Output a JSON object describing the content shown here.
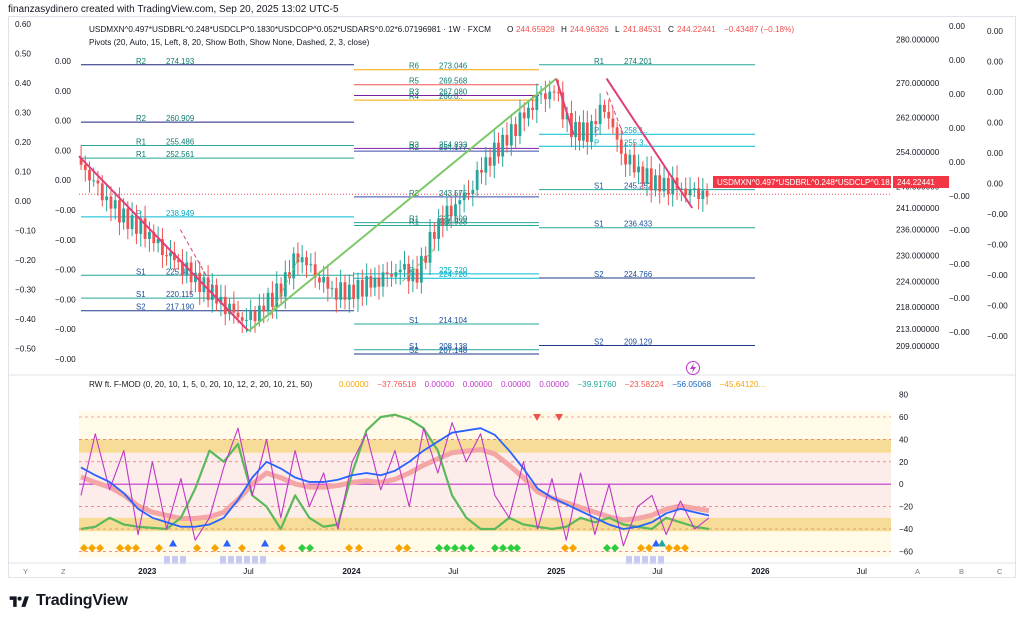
{
  "caption": "finanzasydinero created with TradingView.com, Sep 20, 2025 13:02 UTC-5",
  "brand": "TradingView",
  "colors": {
    "up": "#26a69a",
    "down": "#ef5350",
    "trend_up": "#7ec86a",
    "trend_down": "#e0407a",
    "price_tag": "#f23645"
  },
  "header": {
    "symbol": "USDMXN^0.497*USDBRL^0.248*USDCLP^0.1830*USDCOP^0.052*USDARS^0.02*6.07196981 · 1W · FXCM",
    "o_label": "O",
    "o": "244.65928",
    "h_label": "H",
    "h": "244.96326",
    "l_label": "L",
    "l": "241.84531",
    "c_label": "C",
    "c": "244.22441",
    "chg": "−0.43487 (−0.18%)",
    "pivots": "Pivots (20, Auto, 15, Left, 8, 20, Show Both, Show None, Dashed, 2, 3, close)",
    "osc": "RW ft. F-MOD (0, 20, 10, 1, 5, 0, 20, 10, 12, 2, 20, 10, 21, 50)",
    "osc_values": [
      "0.00000",
      "−37.76518",
      "0.00000",
      "0.00000",
      "0.00000",
      "0.00000",
      "−39.91760",
      "−23.58224",
      "−56.05068",
      "−45.64120..."
    ]
  },
  "price_tag": {
    "label": "USDMXN^0.497*USDBRL^0.248*USDCLP^0.18...",
    "value": "244.22441"
  },
  "chart_data": {
    "type": "line",
    "x_ticks": [
      "2023",
      "Jul",
      "2024",
      "Jul",
      "2025",
      "Jul",
      "2026",
      "Jul"
    ],
    "price_axis": [
      "280.000000",
      "270.000000",
      "262.000000",
      "254.000000",
      "246.000000",
      "241.000000",
      "236.000000",
      "230.000000",
      "224.000000",
      "218.000000",
      "213.000000",
      "209.000000"
    ],
    "left_axis_outer": [
      "0.60",
      "0.50",
      "0.40",
      "0.30",
      "0.20",
      "0.10",
      "0.00",
      "−0.10",
      "−0.20",
      "−0.30",
      "−0.40",
      "−0.50"
    ],
    "left_axis_inner": [
      "0.00",
      "0.00",
      "0.00",
      "0.00",
      "0.00",
      "−0.00",
      "−0.00",
      "−0.00",
      "−0.00",
      "−0.00",
      "−0.00"
    ],
    "right_axis_a": [
      "0.00",
      "0.00",
      "0.00",
      "0.00",
      "0.00",
      "−0.00",
      "−0.00",
      "−0.00",
      "−0.00",
      "−0.00"
    ],
    "right_axis_b": [
      "0.00",
      "0.00",
      "0.00",
      "0.00",
      "0.00",
      "0.00",
      "−0.00",
      "−0.00",
      "−0.00",
      "−0.00",
      "−0.00"
    ],
    "osc_axis": [
      "80",
      "60",
      "40",
      "20",
      "0",
      "−20",
      "−40",
      "−60"
    ],
    "close_series": [
      {
        "t": "2022-09",
        "v": 252.5
      },
      {
        "t": "2022-10",
        "v": 246.5
      },
      {
        "t": "2022-11",
        "v": 241.5
      },
      {
        "t": "2022-12",
        "v": 238.0
      },
      {
        "t": "2023-01",
        "v": 236.0
      },
      {
        "t": "2023-02",
        "v": 231.5
      },
      {
        "t": "2023-03",
        "v": 228.5
      },
      {
        "t": "2023-04",
        "v": 224.5
      },
      {
        "t": "2023-05",
        "v": 221.0
      },
      {
        "t": "2023-06",
        "v": 217.0
      },
      {
        "t": "2023-07",
        "v": 214.5
      },
      {
        "t": "2023-08",
        "v": 218.0
      },
      {
        "t": "2023-09",
        "v": 222.5
      },
      {
        "t": "2023-10",
        "v": 230.5
      },
      {
        "t": "2023-11",
        "v": 226.0
      },
      {
        "t": "2023-12",
        "v": 222.0
      },
      {
        "t": "2024-01",
        "v": 221.5
      },
      {
        "t": "2024-02",
        "v": 223.0
      },
      {
        "t": "2024-03",
        "v": 224.5
      },
      {
        "t": "2024-04",
        "v": 226.5
      },
      {
        "t": "2024-05",
        "v": 225.0
      },
      {
        "t": "2024-06",
        "v": 236.0
      },
      {
        "t": "2024-07",
        "v": 241.0
      },
      {
        "t": "2024-08",
        "v": 245.0
      },
      {
        "t": "2024-09",
        "v": 252.0
      },
      {
        "t": "2024-10",
        "v": 256.0
      },
      {
        "t": "2024-11",
        "v": 261.0
      },
      {
        "t": "2024-12",
        "v": 266.0
      },
      {
        "t": "2025-01",
        "v": 268.0
      },
      {
        "t": "2025-02",
        "v": 259.0
      },
      {
        "t": "2025-03",
        "v": 258.5
      },
      {
        "t": "2025-04",
        "v": 265.0
      },
      {
        "t": "2025-05",
        "v": 254.0
      },
      {
        "t": "2025-06",
        "v": 249.5
      },
      {
        "t": "2025-07",
        "v": 246.5
      },
      {
        "t": "2025-08",
        "v": 246.0
      },
      {
        "t": "2025-09",
        "v": 244.2
      }
    ],
    "trendlines": [
      {
        "name": "down1",
        "from": {
          "t": "2022-09",
          "v": 253.0
        },
        "to": {
          "t": "2023-07",
          "v": 212.5
        }
      },
      {
        "name": "up",
        "from": {
          "t": "2023-07",
          "v": 212.5
        },
        "to": {
          "t": "2025-01",
          "v": 271.0
        }
      },
      {
        "name": "down2",
        "from": {
          "t": "2025-01",
          "v": 271.0
        },
        "to": {
          "t": "2025-02",
          "v": 258.0
        }
      },
      {
        "name": "down3",
        "from": {
          "t": "2025-04",
          "v": 271.0
        },
        "to": {
          "t": "2025-09",
          "v": 241.0
        }
      }
    ],
    "pivot_groups": [
      {
        "levels": [
          {
            "label": "R2",
            "value": "274.193"
          },
          {
            "label": "R2",
            "value": "260.909"
          },
          {
            "label": "R1",
            "value": "255.486"
          },
          {
            "label": "R1",
            "value": "252.561"
          },
          {
            "label": "P",
            "value": "238.949"
          },
          {
            "label": "S1",
            "value": "225.4.."
          },
          {
            "label": "S1",
            "value": "220.115"
          },
          {
            "label": "S2",
            "value": "217.190"
          }
        ]
      },
      {
        "levels": [
          {
            "label": "R6",
            "value": "273.046"
          },
          {
            "label": "R5",
            "value": "269.568"
          },
          {
            "label": "R3",
            "value": "267.080"
          },
          {
            "label": "R4",
            "value": "266.0.."
          },
          {
            "label": "R3",
            "value": "254.833"
          },
          {
            "label": "R2",
            "value": "254.177"
          },
          {
            "label": "R2",
            "value": "243.575"
          },
          {
            "label": "R1",
            "value": "237.609"
          },
          {
            "label": "R1",
            "value": "236.938"
          },
          {
            "label": "P",
            "value": "225.720"
          },
          {
            "label": "P",
            "value": "224.720"
          },
          {
            "label": "S1",
            "value": "214.104"
          },
          {
            "label": "S1",
            "value": "208.138"
          },
          {
            "label": "S2",
            "value": "207.148"
          }
        ]
      },
      {
        "levels": [
          {
            "label": "R1",
            "value": "274.201"
          },
          {
            "label": "P",
            "value": "258.1.."
          },
          {
            "label": "P",
            "value": "255.3.."
          },
          {
            "label": "S1",
            "value": "245.252"
          },
          {
            "label": "S1",
            "value": "236.433"
          },
          {
            "label": "S2",
            "value": "224.766"
          },
          {
            "label": "S2",
            "value": "209.129"
          }
        ]
      }
    ],
    "oscillator": {
      "ylim": [
        -65,
        85
      ],
      "blue": [
        15,
        8,
        2,
        -8,
        -22,
        -30,
        -34,
        -38,
        -38,
        -36,
        -30,
        -14,
        6,
        20,
        14,
        6,
        2,
        2,
        4,
        8,
        10,
        8,
        12,
        20,
        30,
        38,
        46,
        48,
        50,
        44,
        30,
        14,
        -4,
        -12,
        -18,
        -24,
        -30,
        -36,
        -40,
        -38,
        -34,
        -26,
        -22,
        -25,
        -28
      ],
      "pink": [
        -10,
        45,
        -5,
        30,
        -45,
        20,
        -40,
        5,
        -50,
        -30,
        15,
        50,
        -10,
        40,
        -30,
        30,
        -20,
        10,
        -40,
        20,
        45,
        -5,
        30,
        -20,
        50,
        10,
        55,
        20,
        45,
        -10,
        -30,
        20,
        -40,
        5,
        -50,
        10,
        -45,
        0,
        -55,
        -20,
        -10,
        -45,
        -15,
        -40,
        -30
      ],
      "green_up": [
        -40,
        -38,
        -30,
        -36,
        -38,
        -39,
        -40,
        -30,
        -4,
        30,
        20,
        36,
        -10,
        -20,
        -40,
        -10,
        -30,
        -38,
        -36,
        10,
        48,
        60,
        62,
        58,
        50,
        30,
        -10,
        -30,
        -40,
        -40,
        -30,
        -36,
        -38,
        -40,
        -38,
        -30,
        -34,
        -30,
        -36,
        -38,
        -40,
        -30,
        -34,
        -38,
        -40
      ]
    }
  }
}
